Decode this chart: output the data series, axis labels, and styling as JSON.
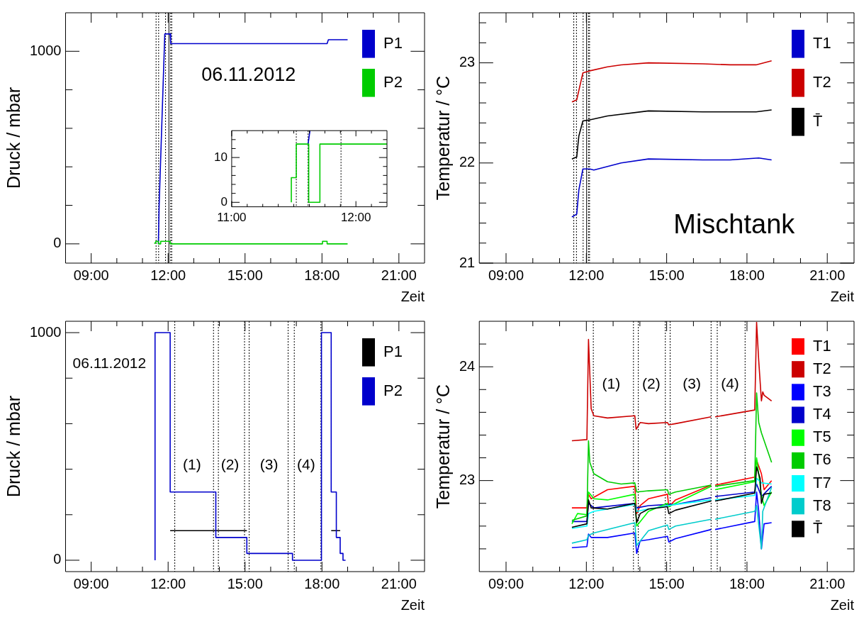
{
  "chart_data": [
    {
      "type": "line",
      "xlabel": "Zeit",
      "ylabel": "Druck / mbar",
      "xlim": [
        8,
        22
      ],
      "ylim": [
        -100,
        1200
      ],
      "xticks": [
        {
          "value": 9,
          "label": "09:00"
        },
        {
          "value": 10,
          "label": null
        },
        {
          "value": 11,
          "label": null
        },
        {
          "value": 12,
          "label": "12:00"
        },
        {
          "value": 13,
          "label": null
        },
        {
          "value": 14,
          "label": null
        },
        {
          "value": 15,
          "label": "15:00"
        },
        {
          "value": 16,
          "label": null
        },
        {
          "value": 17,
          "label": null
        },
        {
          "value": 18,
          "label": "18:00"
        },
        {
          "value": 19,
          "label": null
        },
        {
          "value": 20,
          "label": null
        },
        {
          "value": 21,
          "label": "21:00"
        }
      ],
      "yticks": [
        0,
        {
          "value": 200,
          "label": null
        },
        {
          "value": 400,
          "label": null
        },
        {
          "value": 600,
          "label": null
        },
        {
          "value": 800,
          "label": null
        },
        1000
      ],
      "series": [
        {
          "name": "P1",
          "type": "line",
          "color": "#0000cc",
          "x": [
            11.62,
            11.65,
            11.87,
            12.08,
            12.1,
            18.2,
            18.25,
            19.0
          ],
          "values": [
            0,
            200,
            1090,
            1090,
            1040,
            1040,
            1060,
            1060
          ]
        },
        {
          "name": "P2",
          "type": "step",
          "color": "#00cc00",
          "x": [
            11.48,
            11.52,
            11.62,
            11.71,
            12.08,
            18.02,
            18.2,
            18.35,
            19.0
          ],
          "values": [
            0,
            5,
            13,
            0,
            13,
            0,
            13,
            0,
            0
          ]
        }
      ],
      "ref_lines": [
        {
          "axis": "x",
          "value": 11.53,
          "line_style": "dotted"
        },
        {
          "axis": "x",
          "value": 11.63,
          "line_style": "dotted"
        },
        {
          "axis": "x",
          "value": 11.9,
          "line_style": "dotted"
        },
        {
          "axis": "x",
          "value": 12.03,
          "line_style": "solid"
        },
        {
          "axis": "x",
          "value": 12.1,
          "line_style": "dotted"
        },
        {
          "axis": "x",
          "value": 12.14,
          "line_style": "dotted"
        }
      ],
      "annotations": [
        "06.11.2012"
      ],
      "legend": "top right"
    },
    {
      "type": "line",
      "xlim": [
        11,
        12.25
      ],
      "ylim": [
        -1,
        16
      ],
      "xticks": [
        {
          "value": 11,
          "label": "11:00"
        },
        {
          "value": 11.125,
          "label": null
        },
        {
          "value": 11.25,
          "label": null
        },
        {
          "value": 11.375,
          "label": null
        },
        {
          "value": 11.5,
          "label": null
        },
        {
          "value": 11.625,
          "label": null
        },
        {
          "value": 11.75,
          "label": null
        },
        {
          "value": 11.875,
          "label": null
        },
        {
          "value": 12,
          "label": "12:00"
        },
        {
          "value": 12.125,
          "label": null
        }
      ],
      "yticks": [
        0,
        {
          "value": 2,
          "label": null
        },
        {
          "value": 4,
          "label": null
        },
        {
          "value": 6,
          "label": null
        },
        {
          "value": 8,
          "label": null
        },
        10,
        {
          "value": 12,
          "label": null
        },
        {
          "value": 14,
          "label": null
        }
      ],
      "series": [
        {
          "type": "line",
          "color": "#0000cc",
          "x": [
            11.615,
            11.63
          ],
          "values": [
            13,
            16
          ]
        },
        {
          "type": "step",
          "color": "#00cc00",
          "x": [
            11.48,
            11.52,
            11.62,
            11.71,
            12.08,
            12.25
          ],
          "values": [
            0,
            5.5,
            13,
            0,
            13,
            13
          ]
        }
      ],
      "ref_lines": [
        {
          "axis": "x",
          "value": 11.52,
          "line_style": "dotted"
        },
        {
          "axis": "x",
          "value": 11.615,
          "line_style": "dotted"
        },
        {
          "axis": "x",
          "value": 11.88,
          "line_style": "dotted"
        }
      ]
    },
    {
      "type": "line",
      "xlabel": "Zeit",
      "ylabel": "Temperatur / °C",
      "xlim": [
        8,
        22
      ],
      "ylim": [
        21,
        23.5
      ],
      "xticks": [
        {
          "value": 9,
          "label": "09:00"
        },
        {
          "value": 10,
          "label": null
        },
        {
          "value": 11,
          "label": null
        },
        {
          "value": 12,
          "label": "12:00"
        },
        {
          "value": 13,
          "label": null
        },
        {
          "value": 14,
          "label": null
        },
        {
          "value": 15,
          "label": "15:00"
        },
        {
          "value": 16,
          "label": null
        },
        {
          "value": 17,
          "label": null
        },
        {
          "value": 18,
          "label": "18:00"
        },
        {
          "value": 19,
          "label": null
        },
        {
          "value": 20,
          "label": null
        },
        {
          "value": 21,
          "label": "21:00"
        }
      ],
      "yticks": [
        21,
        {
          "value": 21.2,
          "label": null
        },
        {
          "value": 21.4,
          "label": null
        },
        {
          "value": 21.6,
          "label": null
        },
        {
          "value": 21.8,
          "label": null
        },
        22,
        {
          "value": 22.2,
          "label": null
        },
        {
          "value": 22.4,
          "label": null
        },
        {
          "value": 22.6,
          "label": null
        },
        {
          "value": 22.8,
          "label": null
        },
        23,
        {
          "value": 23.2,
          "label": null
        },
        {
          "value": 23.4,
          "label": null
        }
      ],
      "series": [
        {
          "name": "T1",
          "type": "line",
          "color": "#0000cc",
          "x": [
            11.46,
            11.64,
            11.72,
            11.87,
            12.13,
            12.28,
            13.3,
            14.32,
            16.35,
            17.37,
            18.44,
            18.92
          ],
          "values": [
            21.46,
            21.49,
            21.73,
            21.94,
            21.94,
            21.93,
            22.0,
            22.04,
            22.03,
            22.03,
            22.05,
            22.03
          ]
        },
        {
          "name": "T2",
          "type": "line",
          "color": "#cc0000",
          "x": [
            11.46,
            11.64,
            11.87,
            12.13,
            12.79,
            13.3,
            14.32,
            16.35,
            17.37,
            18.34,
            18.92
          ],
          "values": [
            22.61,
            22.63,
            22.9,
            22.92,
            22.96,
            22.98,
            23.0,
            22.99,
            22.98,
            22.98,
            23.02
          ]
        },
        {
          "name": "T̄",
          "type": "line",
          "color": "#000000",
          "x": [
            11.46,
            11.64,
            11.72,
            11.87,
            12.13,
            12.79,
            14.32,
            16.35,
            17.37,
            18.34,
            18.92
          ],
          "values": [
            22.04,
            22.06,
            22.27,
            22.42,
            22.43,
            22.47,
            22.52,
            22.51,
            22.51,
            22.51,
            22.53
          ]
        }
      ],
      "ref_lines": [
        {
          "axis": "x",
          "value": 11.53,
          "line_style": "dotted"
        },
        {
          "axis": "x",
          "value": 11.63,
          "line_style": "dotted"
        },
        {
          "axis": "x",
          "value": 11.88,
          "line_style": "dotted"
        },
        {
          "axis": "x",
          "value": 12.01,
          "line_style": "solid"
        },
        {
          "axis": "x",
          "value": 12.08,
          "line_style": "dotted"
        },
        {
          "axis": "x",
          "value": 12.12,
          "line_style": "dotted"
        }
      ],
      "annotations": [
        "Mischtank"
      ],
      "legend": "top right"
    },
    {
      "type": "line",
      "xlabel": "Zeit",
      "ylabel": "Druck / mbar",
      "xlim": [
        8,
        22
      ],
      "ylim": [
        -50,
        1050
      ],
      "xticks": [
        {
          "value": 9,
          "label": "09:00"
        },
        {
          "value": 10,
          "label": null
        },
        {
          "value": 11,
          "label": null
        },
        {
          "value": 12,
          "label": "12:00"
        },
        {
          "value": 13,
          "label": null
        },
        {
          "value": 14,
          "label": null
        },
        {
          "value": 15,
          "label": "15:00"
        },
        {
          "value": 16,
          "label": null
        },
        {
          "value": 17,
          "label": null
        },
        {
          "value": 18,
          "label": "18:00"
        },
        {
          "value": 19,
          "label": null
        },
        {
          "value": 20,
          "label": null
        },
        {
          "value": 21,
          "label": "21:00"
        }
      ],
      "yticks": [
        0,
        {
          "value": 200,
          "label": null
        },
        {
          "value": 400,
          "label": null
        },
        {
          "value": 600,
          "label": null
        },
        {
          "value": 800,
          "label": null
        },
        1000
      ],
      "series": [
        {
          "name": "P1",
          "type": "line",
          "color": "#000000",
          "x": [
            12.08,
            15.07,
            16.7,
            18.36,
            18.71
          ],
          "values": [
            130,
            130,
            null,
            130,
            130
          ]
        },
        {
          "name": "P2",
          "type": "step",
          "color": "#0000cc",
          "x": [
            11.49,
            12.08,
            13.86,
            15.07,
            16.85,
            17.98,
            18.36,
            18.56,
            18.71,
            18.82,
            18.92
          ],
          "values": [
            0,
            1000,
            300,
            100,
            30,
            0,
            1000,
            300,
            100,
            30,
            0
          ]
        }
      ],
      "ref_lines": [
        {
          "axis": "x",
          "value": 12.26,
          "line_style": "dotted"
        },
        {
          "axis": "x",
          "value": 13.77,
          "line_style": "dotted"
        },
        {
          "axis": "x",
          "value": 13.96,
          "line_style": "dotted"
        },
        {
          "axis": "x",
          "value": 14.98,
          "line_style": "dotted"
        },
        {
          "axis": "x",
          "value": 15.16,
          "line_style": "dotted"
        },
        {
          "axis": "x",
          "value": 16.68,
          "line_style": "dotted"
        },
        {
          "axis": "x",
          "value": 16.92,
          "line_style": "dotted"
        },
        {
          "axis": "x",
          "value": 17.96,
          "line_style": "dotted"
        }
      ],
      "annotations": [
        "06.11.2012",
        "(1)",
        "(2)",
        "(3)",
        "(4)"
      ],
      "legend": "top right"
    },
    {
      "type": "line",
      "xlabel": "Zeit",
      "ylabel": "Temperatur / °C",
      "xlim": [
        8,
        22
      ],
      "ylim": [
        22.2,
        24.4
      ],
      "xticks": [
        {
          "value": 9,
          "label": "09:00"
        },
        {
          "value": 10,
          "label": null
        },
        {
          "value": 11,
          "label": null
        },
        {
          "value": 12,
          "label": "12:00"
        },
        {
          "value": 13,
          "label": null
        },
        {
          "value": 14,
          "label": null
        },
        {
          "value": 15,
          "label": "15:00"
        },
        {
          "value": 16,
          "label": null
        },
        {
          "value": 17,
          "label": null
        },
        {
          "value": 18,
          "label": "18:00"
        },
        {
          "value": 19,
          "label": null
        },
        {
          "value": 20,
          "label": null
        },
        {
          "value": 21,
          "label": "21:00"
        }
      ],
      "yticks": [
        {
          "value": 22.4,
          "label": null
        },
        {
          "value": 22.6,
          "label": null
        },
        {
          "value": 22.8,
          "label": null
        },
        23,
        {
          "value": 23.2,
          "label": null
        },
        {
          "value": 23.4,
          "label": null
        },
        {
          "value": 23.6,
          "label": null
        },
        {
          "value": 23.8,
          "label": null
        },
        24,
        {
          "value": 24.2,
          "label": null
        }
      ],
      "series": [
        {
          "name": "T1",
          "type": "line",
          "color": "#ff0000",
          "x": [
            11.46,
            12.02,
            12.08,
            12.18,
            12.79,
            13.81,
            13.88,
            14.01,
            14.32,
            15.03,
            15.08,
            15.33,
            16.66,
            16.73,
            16.81,
            18.29,
            18.36,
            18.54,
            18.64,
            18.92
          ],
          "values": [
            22.76,
            22.76,
            22.88,
            22.84,
            22.92,
            22.95,
            22.71,
            22.78,
            22.84,
            22.88,
            22.77,
            22.83,
            22.96,
            null,
            22.96,
            23.03,
            23.18,
            23.06,
            22.92,
            23.0
          ]
        },
        {
          "name": "T2",
          "type": "line",
          "color": "#cc0000",
          "x": [
            11.46,
            12.02,
            12.08,
            12.18,
            12.28,
            12.79,
            13.81,
            13.86,
            14.01,
            14.32,
            15.03,
            15.08,
            15.33,
            16.66,
            16.73,
            16.81,
            18.29,
            18.36,
            18.44,
            18.54,
            18.59,
            18.64,
            18.92
          ],
          "values": [
            23.35,
            23.36,
            24.24,
            23.63,
            23.57,
            23.55,
            23.57,
            23.45,
            23.51,
            23.5,
            23.51,
            23.49,
            23.5,
            23.56,
            null,
            23.56,
            23.62,
            24.39,
            24.05,
            23.7,
            23.78,
            23.75,
            23.7
          ]
        },
        {
          "name": "T3",
          "type": "line",
          "color": "#0000ff",
          "x": [
            11.46,
            12.02,
            12.08,
            12.18,
            12.79,
            13.81,
            13.88,
            14.01,
            14.32,
            15.03,
            15.08,
            15.33,
            16.66,
            16.73,
            16.81,
            18.29,
            18.36,
            18.44,
            18.54,
            18.64,
            18.92
          ],
          "values": [
            22.41,
            22.42,
            22.53,
            22.5,
            22.5,
            22.54,
            22.36,
            22.47,
            22.48,
            22.51,
            22.46,
            22.49,
            22.57,
            null,
            22.57,
            22.64,
            22.9,
            22.73,
            22.4,
            22.62,
            22.63
          ]
        },
        {
          "name": "T4",
          "type": "line",
          "color": "#0000cc",
          "x": [
            11.46,
            12.02,
            12.08,
            12.28,
            13.81,
            13.88,
            14.32,
            15.03,
            15.33,
            16.66,
            16.73,
            16.81,
            18.29,
            18.36,
            18.54,
            18.92
          ],
          "values": [
            22.64,
            22.64,
            22.8,
            22.76,
            22.8,
            22.76,
            22.78,
            22.79,
            22.79,
            22.85,
            null,
            22.86,
            22.9,
            22.97,
            22.86,
            22.95
          ]
        },
        {
          "name": "T5",
          "type": "line",
          "color": "#00ff00",
          "x": [
            11.46,
            11.67,
            12.02,
            12.08,
            12.28,
            12.79,
            13.81,
            13.88,
            14.32,
            15.03,
            15.08,
            15.33,
            16.66,
            16.73,
            16.81,
            18.29,
            18.36,
            18.54,
            18.64,
            18.92
          ],
          "values": [
            22.62,
            22.71,
            22.7,
            22.9,
            22.84,
            22.83,
            22.88,
            22.6,
            22.73,
            22.8,
            22.77,
            22.8,
            22.95,
            null,
            22.92,
            22.99,
            23.2,
            22.87,
            22.78,
            22.9
          ]
        },
        {
          "name": "T6",
          "type": "line",
          "color": "#00cc00",
          "x": [
            11.46,
            12.02,
            12.08,
            12.13,
            12.28,
            12.79,
            13.3,
            13.81,
            13.88,
            14.32,
            15.03,
            15.08,
            15.33,
            16.66,
            16.73,
            16.81,
            18.29,
            18.36,
            18.44,
            18.54,
            18.92
          ],
          "values": [
            22.65,
            22.69,
            23.35,
            23.16,
            23.06,
            22.99,
            22.97,
            22.98,
            22.9,
            22.91,
            22.92,
            22.88,
            22.9,
            22.96,
            null,
            22.95,
            23.0,
            23.77,
            23.51,
            23.42,
            23.16
          ]
        },
        {
          "name": "T7",
          "type": "line",
          "color": "#00ffff",
          "x": [
            11.46,
            12.02,
            12.08,
            12.28,
            13.81,
            13.88,
            14.32,
            15.33,
            16.66,
            16.73,
            16.81,
            18.29,
            18.36,
            18.54,
            18.92
          ],
          "values": [
            22.58,
            22.6,
            22.71,
            22.73,
            22.79,
            22.73,
            22.75,
            22.79,
            22.83,
            null,
            22.83,
            22.87,
            23.02,
            22.98,
            22.97
          ]
        },
        {
          "name": "T8",
          "type": "line",
          "color": "#00cccc",
          "x": [
            11.46,
            12.02,
            12.08,
            12.28,
            13.81,
            13.88,
            14.32,
            15.03,
            15.08,
            15.33,
            16.66,
            16.73,
            16.81,
            18.29,
            18.36,
            18.54,
            18.59,
            18.92
          ],
          "values": [
            22.45,
            22.48,
            22.52,
            22.54,
            22.63,
            22.43,
            22.56,
            22.61,
            22.57,
            22.6,
            22.66,
            null,
            22.66,
            22.73,
            22.78,
            22.4,
            22.73,
            22.94
          ]
        },
        {
          "name": "T̄",
          "type": "line",
          "color": "#000000",
          "x": [
            11.46,
            12.02,
            12.08,
            12.18,
            12.79,
            13.81,
            13.88,
            14.01,
            14.32,
            15.03,
            15.08,
            15.33,
            16.66,
            16.73,
            16.81,
            18.29,
            18.36,
            18.49,
            18.54,
            18.64,
            18.92
          ],
          "values": [
            22.59,
            22.62,
            22.83,
            22.76,
            22.75,
            22.8,
            22.63,
            22.71,
            22.75,
            22.77,
            22.71,
            22.74,
            22.82,
            null,
            22.82,
            22.89,
            23.12,
            23.02,
            22.8,
            22.88,
            22.89
          ]
        }
      ],
      "ref_lines": [
        {
          "axis": "x",
          "value": 12.26,
          "line_style": "dotted"
        },
        {
          "axis": "x",
          "value": 13.76,
          "line_style": "dotted"
        },
        {
          "axis": "x",
          "value": 13.94,
          "line_style": "dotted"
        },
        {
          "axis": "x",
          "value": 14.95,
          "line_style": "dotted"
        },
        {
          "axis": "x",
          "value": 15.13,
          "line_style": "dotted"
        },
        {
          "axis": "x",
          "value": 16.66,
          "line_style": "dotted"
        },
        {
          "axis": "x",
          "value": 16.89,
          "line_style": "dotted"
        },
        {
          "axis": "x",
          "value": 17.93,
          "line_style": "dotted"
        }
      ],
      "annotations": [
        "(1)",
        "(2)",
        "(3)",
        "(4)"
      ],
      "legend": "top right"
    }
  ]
}
